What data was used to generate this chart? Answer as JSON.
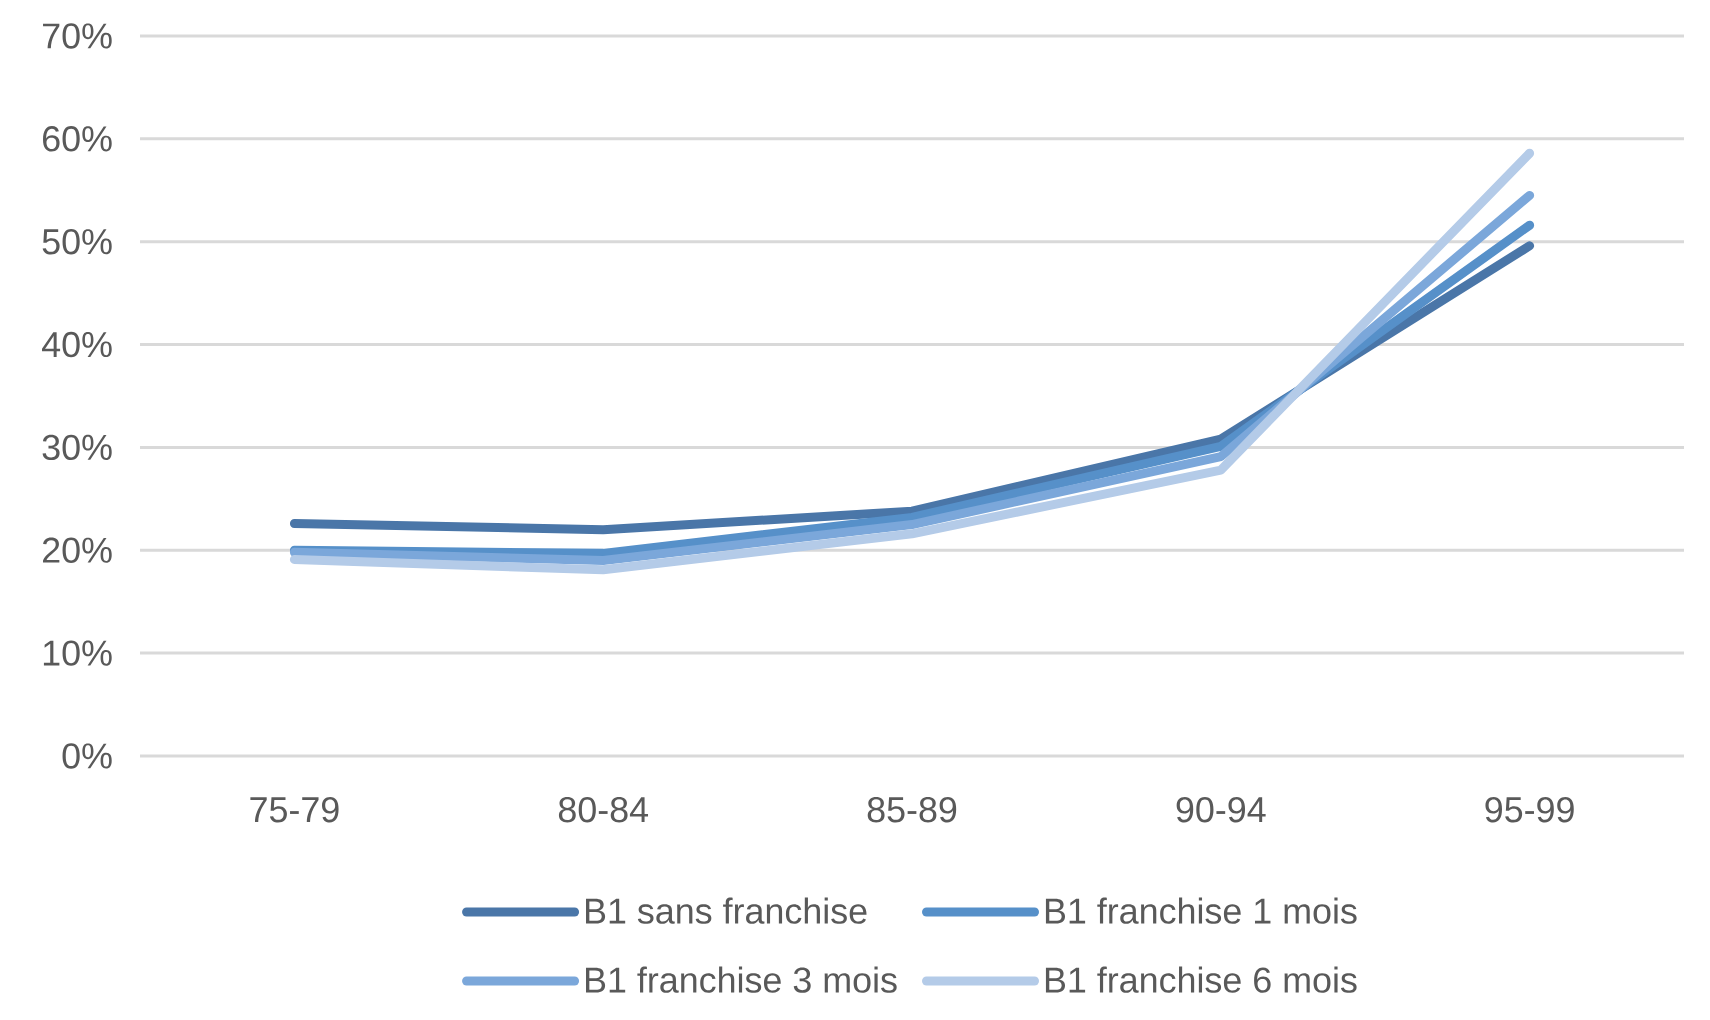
{
  "chart_data": {
    "type": "line",
    "categories": [
      "75-79",
      "80-84",
      "85-89",
      "90-94",
      "95-99"
    ],
    "series": [
      {
        "name": "B1 sans franchise",
        "color": "#4a76a8",
        "values": [
          22.6,
          22.0,
          23.8,
          30.8,
          49.6
        ]
      },
      {
        "name": "B1 franchise 1 mois",
        "color": "#5690c9",
        "values": [
          20.0,
          19.7,
          23.2,
          30.1,
          51.6
        ]
      },
      {
        "name": "B1 franchise 3 mois",
        "color": "#7ba7da",
        "values": [
          19.8,
          19.0,
          22.5,
          29.1,
          54.5
        ]
      },
      {
        "name": "B1 franchise 6 mois",
        "color": "#b4cbe8",
        "values": [
          19.1,
          18.1,
          21.6,
          27.8,
          58.6
        ]
      }
    ],
    "ylim": [
      0,
      70
    ],
    "yticks": [
      {
        "value": 0,
        "label": "0%"
      },
      {
        "value": 10,
        "label": "10%"
      },
      {
        "value": 20,
        "label": "20%"
      },
      {
        "value": 30,
        "label": "30%"
      },
      {
        "value": 40,
        "label": "40%"
      },
      {
        "value": 50,
        "label": "50%"
      },
      {
        "value": 60,
        "label": "60%"
      },
      {
        "value": 70,
        "label": "70%"
      }
    ],
    "grid": "y",
    "legend": "bottom",
    "marker": "none",
    "line_style": "solid"
  }
}
